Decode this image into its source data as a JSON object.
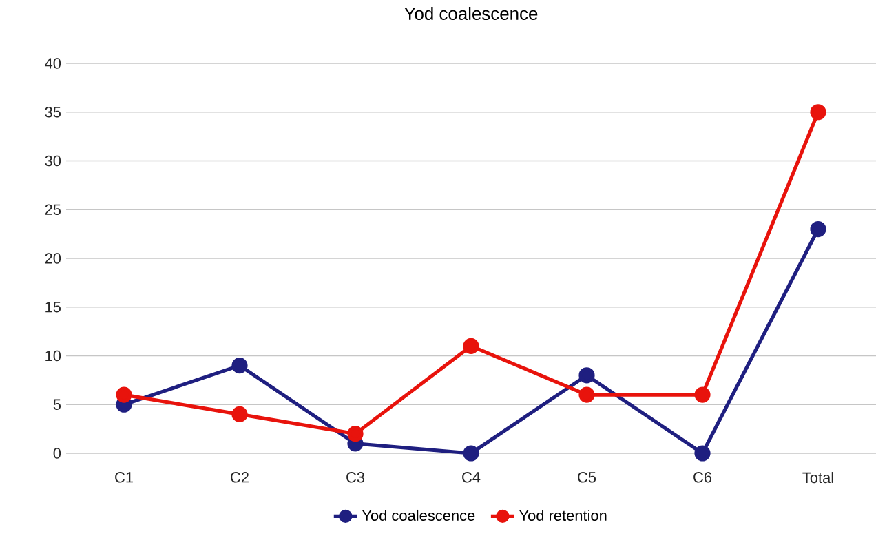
{
  "chart_data": {
    "type": "line",
    "title": "Yod coalescence",
    "categories": [
      "C1",
      "C2",
      "C3",
      "C4",
      "C5",
      "C6",
      "Total"
    ],
    "series": [
      {
        "name": "Yod coalescence",
        "color": "#1f1f80",
        "values": [
          5,
          9,
          1,
          0,
          8,
          0,
          23
        ]
      },
      {
        "name": "Yod retention",
        "color": "#e8130c",
        "values": [
          6,
          4,
          2,
          11,
          6,
          6,
          35
        ]
      }
    ],
    "ylim": [
      0,
      40
    ],
    "yticks": [
      0,
      5,
      10,
      15,
      20,
      25,
      30,
      35,
      40
    ],
    "grid": "y",
    "legend": "bottom",
    "marker": "circle",
    "line_style": "solid"
  }
}
